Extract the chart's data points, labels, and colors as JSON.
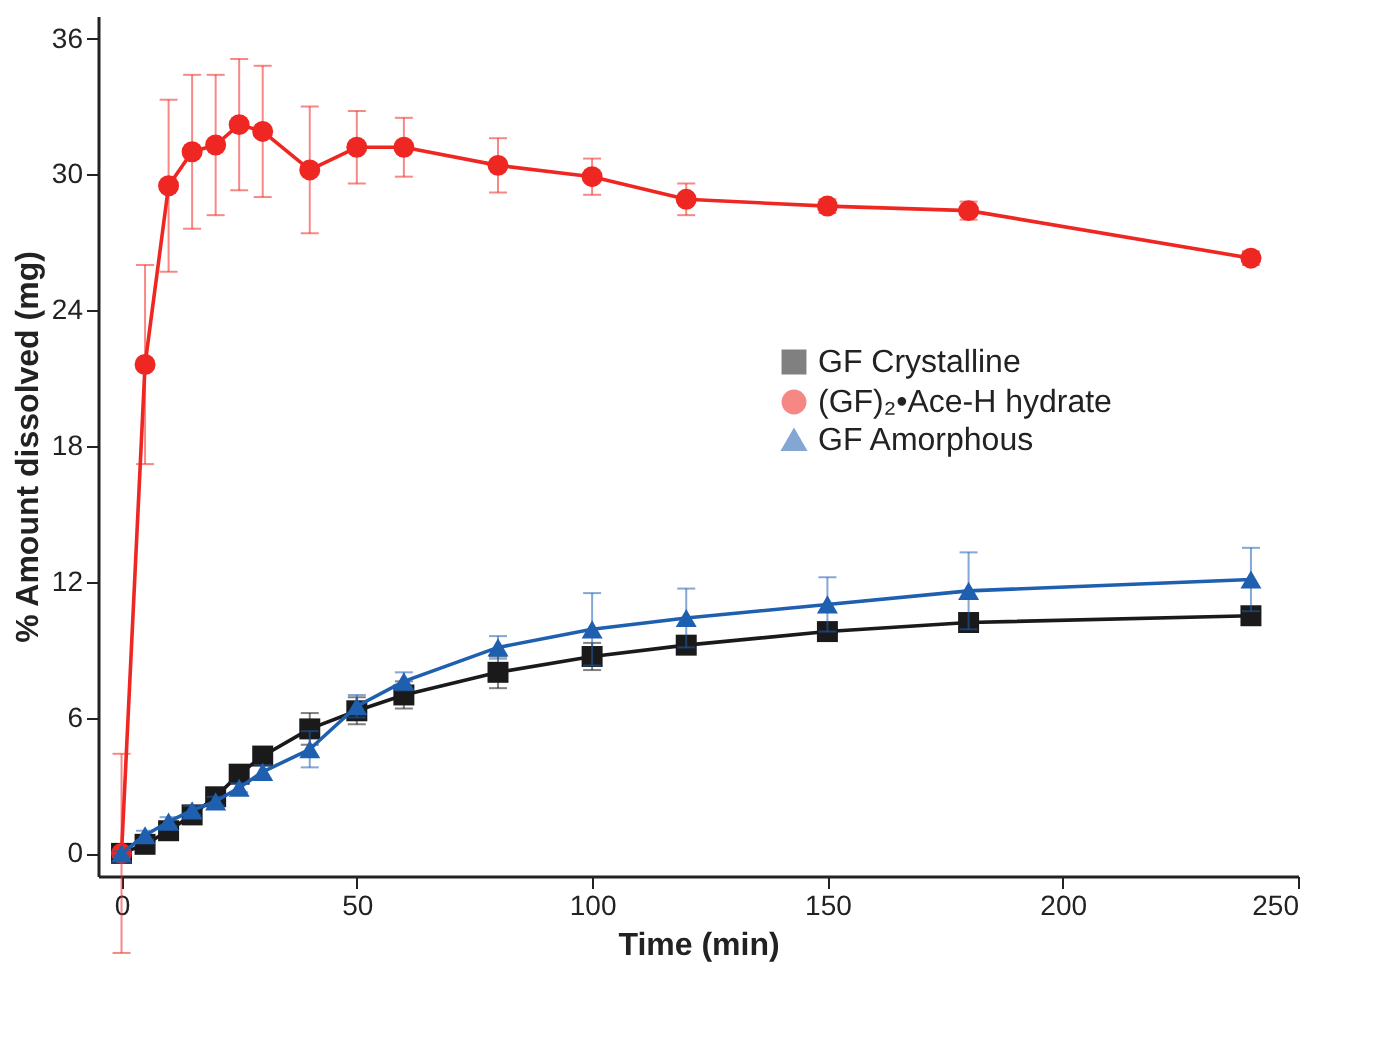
{
  "chart_data": {
    "type": "line",
    "xlabel": "Time (min)",
    "ylabel": "% Amount dissolved (mg)",
    "x": [
      0,
      5,
      10,
      15,
      20,
      25,
      30,
      40,
      50,
      60,
      80,
      100,
      120,
      150,
      180,
      240
    ],
    "series": [
      {
        "name": "GF Crystalline",
        "color": "#1a1a1a",
        "marker": "square",
        "values": [
          0,
          0.4,
          1.0,
          1.7,
          2.5,
          3.5,
          4.3,
          5.5,
          6.3,
          7.0,
          8.0,
          8.7,
          9.2,
          9.8,
          10.2,
          10.5
        ],
        "errors": [
          0.1,
          0.2,
          0.3,
          0.3,
          0.3,
          0.3,
          0.3,
          0.7,
          0.6,
          0.6,
          0.7,
          0.6,
          0.3,
          0.3,
          0.3,
          0.3
        ]
      },
      {
        "name": "(GF)₂•Ace-H hydrate",
        "color": "#ee2722",
        "marker": "circle",
        "values": [
          0,
          21.6,
          29.5,
          31.0,
          31.3,
          32.2,
          31.9,
          30.2,
          31.2,
          31.2,
          30.4,
          29.9,
          28.9,
          28.6,
          28.4,
          26.3
        ],
        "errors": [
          4.4,
          4.4,
          3.8,
          3.4,
          3.1,
          2.9,
          2.9,
          2.8,
          1.6,
          1.3,
          1.2,
          0.8,
          0.7,
          0.3,
          0.4,
          0.3
        ]
      },
      {
        "name": "GF Amorphous",
        "color": "#1f5fb0",
        "marker": "triangle",
        "values": [
          0,
          0.8,
          1.4,
          1.9,
          2.3,
          2.9,
          3.6,
          4.6,
          6.5,
          7.6,
          9.1,
          9.9,
          10.4,
          11.0,
          11.6,
          12.1
        ],
        "errors": [
          0.1,
          0.2,
          0.2,
          0.2,
          0.2,
          0.2,
          0.3,
          0.8,
          0.5,
          0.4,
          0.5,
          1.6,
          1.3,
          1.2,
          1.7,
          1.4
        ]
      }
    ],
    "xlim": [
      -5,
      250
    ],
    "xticks": [
      0,
      50,
      100,
      150,
      200,
      250
    ],
    "ylim": [
      -1,
      37
    ],
    "yticks": [
      0,
      6,
      12,
      18,
      24,
      30,
      36
    ],
    "grid": false,
    "legend": "right",
    "line_style": "solid"
  }
}
